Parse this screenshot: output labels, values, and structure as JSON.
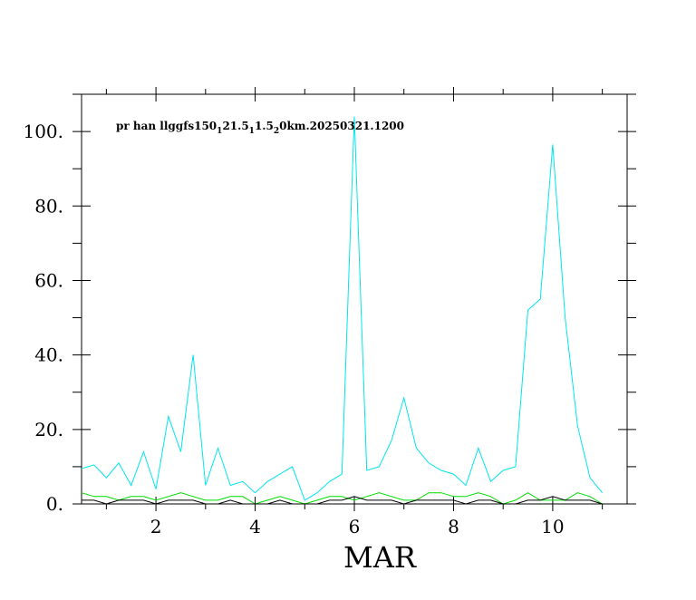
{
  "chart_data": {
    "type": "line",
    "title_parts": [
      {
        "text": "pr han llggfs150",
        "sub": false
      },
      {
        "text": "1",
        "sub": true
      },
      {
        "text": "21.5",
        "sub": false
      },
      {
        "text": "1",
        "sub": true
      },
      {
        "text": "1.5",
        "sub": false
      },
      {
        "text": "2",
        "sub": true
      },
      {
        "text": "0km.20250321.1200",
        "sub": false
      }
    ],
    "xlabel": "MAR",
    "ylabel": "",
    "xlim": [
      0.5,
      11.5
    ],
    "ylim": [
      0,
      110
    ],
    "y_ticks": [
      0,
      20,
      40,
      60,
      80,
      100
    ],
    "y_tick_labels": [
      "0.",
      "20.",
      "40.",
      "60.",
      "80.",
      "100."
    ],
    "y_minor_ticks": [
      10,
      30,
      50,
      70,
      90,
      110
    ],
    "x_ticks": [
      2,
      4,
      6,
      8,
      10
    ],
    "x_tick_labels": [
      "2",
      "4",
      "6",
      "8",
      "10"
    ],
    "x_minor_ticks": [
      1,
      3,
      5,
      7,
      9,
      11
    ],
    "grid": false,
    "x": [
      0.5,
      0.75,
      1.0,
      1.25,
      1.5,
      1.75,
      2.0,
      2.25,
      2.5,
      2.75,
      3.0,
      3.25,
      3.5,
      3.75,
      4.0,
      4.25,
      4.5,
      4.75,
      5.0,
      5.25,
      5.5,
      5.75,
      6.0,
      6.25,
      6.5,
      6.75,
      7.0,
      7.25,
      7.5,
      7.75,
      8.0,
      8.25,
      8.5,
      8.75,
      9.0,
      9.25,
      9.5,
      9.75,
      10.0,
      10.25,
      10.5,
      10.75,
      11.0
    ],
    "series": [
      {
        "color": "#00e5ee",
        "values": [
          9.5,
          10.5,
          7,
          11,
          5,
          14,
          4,
          23.5,
          14,
          40,
          5,
          15,
          5,
          6,
          3,
          6,
          8,
          10,
          1,
          3,
          6,
          8,
          104,
          9,
          10,
          17,
          28.5,
          15,
          11,
          9,
          8,
          5,
          15,
          6,
          9,
          10,
          52,
          55,
          96.5,
          50,
          21,
          7,
          3
        ]
      },
      {
        "color": "#00dd00",
        "values": [
          3,
          2,
          2,
          1,
          2,
          2,
          1,
          2,
          3,
          2,
          1,
          1,
          2,
          2,
          0,
          1,
          2,
          1,
          0,
          1,
          2,
          2,
          1,
          2,
          3,
          2,
          1,
          1,
          3,
          3,
          2,
          2,
          3,
          2,
          0,
          1,
          3,
          1,
          1,
          1,
          3,
          2,
          0
        ]
      },
      {
        "color": "#000000",
        "values": [
          1,
          1,
          0,
          1,
          1,
          1,
          0,
          1,
          1,
          1,
          0,
          0,
          1,
          0,
          0,
          0,
          1,
          0,
          0,
          0,
          1,
          1,
          2,
          1,
          1,
          1,
          0,
          1,
          1,
          1,
          1,
          0,
          1,
          1,
          0,
          0,
          1,
          1,
          2,
          1,
          1,
          1,
          0
        ]
      }
    ]
  }
}
